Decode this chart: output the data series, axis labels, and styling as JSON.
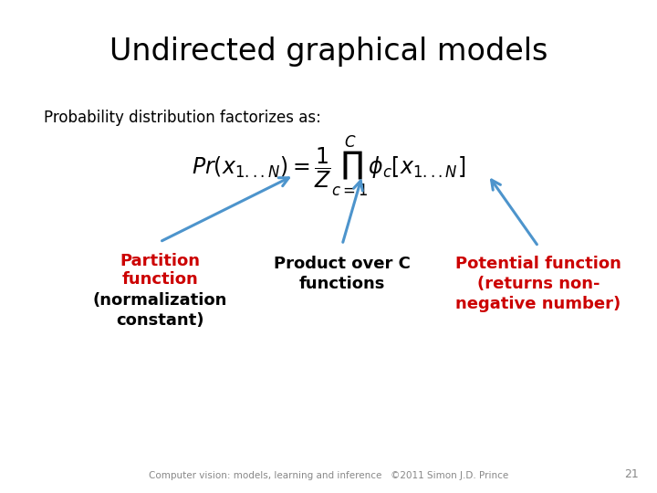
{
  "title": "Undirected graphical models",
  "subtitle": "Probability distribution factorizes as:",
  "formula": "$\\mathit{Pr}(x_{1...N}) = \\dfrac{1}{Z} \\prod_{c=1}^{C} \\phi_c[x_{1...N}]$",
  "label_partition_line1": "Partition",
  "label_partition_line2": "function",
  "label_partition_line3": "(normalization",
  "label_partition_line4": "constant)",
  "label_product_line1": "Product over C",
  "label_product_line2": "functions",
  "label_potential_line1": "Potential function",
  "label_potential_line2": "(returns non-",
  "label_potential_line3": "negative number)",
  "footer": "Computer vision: models, learning and inference   ©2011 Simon J.D. Prince",
  "page_number": "21",
  "bg_color": "#ffffff",
  "title_color": "#000000",
  "subtitle_color": "#000000",
  "formula_color": "#000000",
  "partition_color": "#cc0000",
  "product_color": "#000000",
  "potential_color": "#cc0000",
  "arrow_color": "#4d94cc",
  "footer_color": "#888888",
  "title_fontsize": 24,
  "subtitle_fontsize": 12,
  "formula_fontsize": 17,
  "label_fontsize": 13,
  "footer_fontsize": 7.5
}
